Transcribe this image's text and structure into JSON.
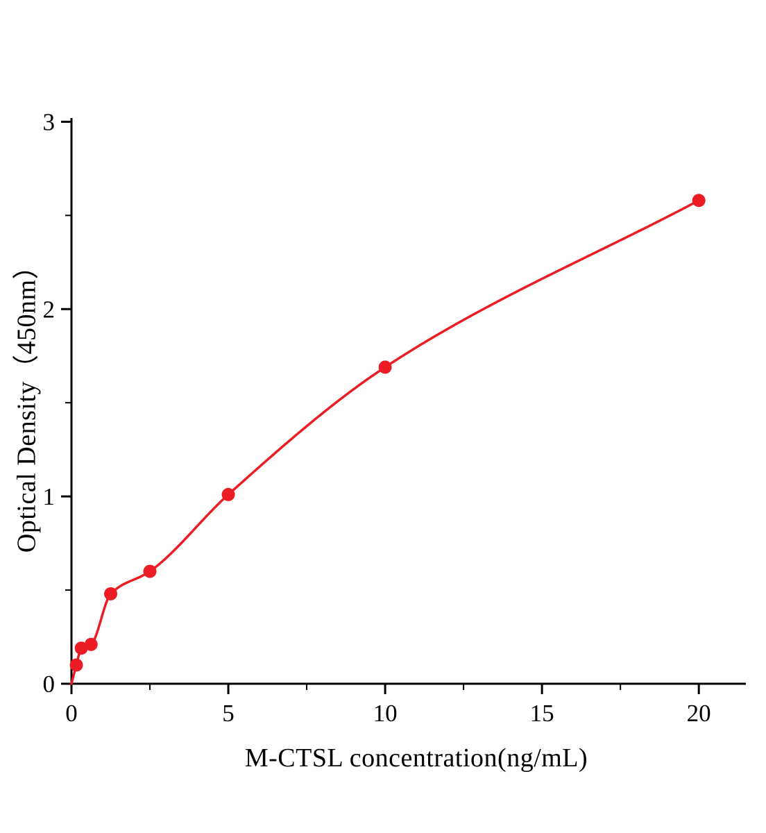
{
  "chart_data": {
    "type": "scatter",
    "title": "",
    "xlabel": "M-CTSL concentration(ng/mL)",
    "ylabel": "Optical Density（450nm）",
    "x": [
      0.156,
      0.313,
      0.625,
      1.25,
      2.5,
      5,
      10,
      20
    ],
    "y": [
      0.1,
      0.19,
      0.21,
      0.48,
      0.6,
      1.01,
      1.69,
      2.58
    ],
    "curve_start": [
      0,
      0
    ],
    "xlim": [
      0,
      21.5
    ],
    "ylim": [
      0,
      3.02
    ],
    "xticks": [
      0,
      5,
      10,
      15,
      20
    ],
    "yticks": [
      0,
      1,
      2,
      3
    ],
    "x_minor_step": 2.5,
    "y_minor_step": 0.5,
    "grid": false,
    "legend": false,
    "marker_color": "#ec1c24",
    "line_color": "#ec1c24",
    "axis_color": "#000000",
    "background": "#ffffff"
  }
}
